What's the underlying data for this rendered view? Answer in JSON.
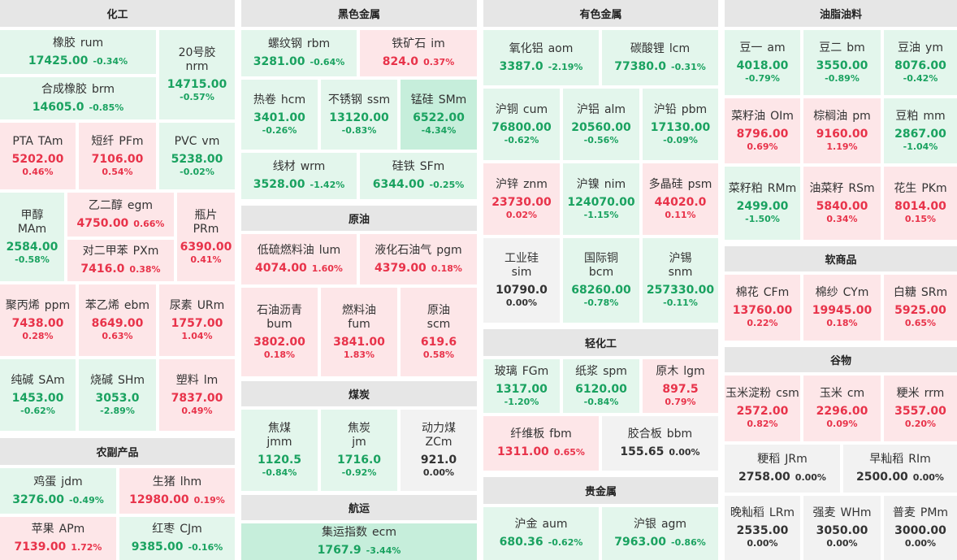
{
  "sections": {
    "huagong": "化工",
    "nongfu": "农副产品",
    "heise": "黑色金属",
    "yuanyou": "原油",
    "meitan": "煤炭",
    "hangyun": "航运",
    "youse": "有色金属",
    "qinghuagong": "轻化工",
    "guijinshu": "贵金属",
    "youzhi": "油脂油料",
    "ruanshangpin": "软商品",
    "guwu": "谷物"
  },
  "tiles": [
    {
      "name": "橡胶",
      "code": "rum",
      "price": "17425.00",
      "pct": "-0.34%",
      "dir": "dn"
    },
    {
      "name": "20号胶",
      "code": "nrm",
      "price": "14715.00",
      "pct": "-0.57%",
      "dir": "dn"
    },
    {
      "name": "合成橡胶",
      "code": "brm",
      "price": "14605.0",
      "pct": "-0.85%",
      "dir": "dn"
    },
    {
      "name": "PTA",
      "code": "TAm",
      "price": "5202.00",
      "pct": "0.46%",
      "dir": "up"
    },
    {
      "name": "短纤",
      "code": "PFm",
      "price": "7106.00",
      "pct": "0.54%",
      "dir": "up"
    },
    {
      "name": "PVC",
      "code": "vm",
      "price": "5238.00",
      "pct": "-0.02%",
      "dir": "dn"
    },
    {
      "name": "甲醇",
      "code": "MAm",
      "price": "2584.00",
      "pct": "-0.58%",
      "dir": "dn"
    },
    {
      "name": "乙二醇",
      "code": "egm",
      "price": "4750.00",
      "pct": "0.66%",
      "dir": "up"
    },
    {
      "name": "瓶片",
      "code": "PRm",
      "price": "6390.00",
      "pct": "0.41%",
      "dir": "up"
    },
    {
      "name": "对二甲苯",
      "code": "PXm",
      "price": "7416.0",
      "pct": "0.38%",
      "dir": "up"
    },
    {
      "name": "聚丙烯",
      "code": "ppm",
      "price": "7438.00",
      "pct": "0.28%",
      "dir": "up"
    },
    {
      "name": "苯乙烯",
      "code": "ebm",
      "price": "8649.00",
      "pct": "0.63%",
      "dir": "up"
    },
    {
      "name": "尿素",
      "code": "URm",
      "price": "1757.00",
      "pct": "1.04%",
      "dir": "up"
    },
    {
      "name": "纯碱",
      "code": "SAm",
      "price": "1453.00",
      "pct": "-0.62%",
      "dir": "dn"
    },
    {
      "name": "烧碱",
      "code": "SHm",
      "price": "3053.0",
      "pct": "-2.89%",
      "dir": "dn"
    },
    {
      "name": "塑料",
      "code": "lm",
      "price": "7837.00",
      "pct": "0.49%",
      "dir": "up"
    },
    {
      "name": "鸡蛋",
      "code": "jdm",
      "price": "3276.00",
      "pct": "-0.49%",
      "dir": "dn"
    },
    {
      "name": "生猪",
      "code": "lhm",
      "price": "12980.00",
      "pct": "0.19%",
      "dir": "up"
    },
    {
      "name": "苹果",
      "code": "APm",
      "price": "7139.00",
      "pct": "1.72%",
      "dir": "up"
    },
    {
      "name": "红枣",
      "code": "CJm",
      "price": "9385.00",
      "pct": "-0.16%",
      "dir": "dn"
    },
    {
      "name": "螺纹钢",
      "code": "rbm",
      "price": "3281.00",
      "pct": "-0.64%",
      "dir": "dn"
    },
    {
      "name": "铁矿石",
      "code": "im",
      "price": "824.0",
      "pct": "0.37%",
      "dir": "up"
    },
    {
      "name": "热卷",
      "code": "hcm",
      "price": "3401.00",
      "pct": "-0.26%",
      "dir": "dn"
    },
    {
      "name": "不锈钢",
      "code": "ssm",
      "price": "13120.00",
      "pct": "-0.83%",
      "dir": "dn"
    },
    {
      "name": "锰硅",
      "code": "SMm",
      "price": "6522.00",
      "pct": "-4.34%",
      "dir": "dn2"
    },
    {
      "name": "线材",
      "code": "wrm",
      "price": "3528.00",
      "pct": "-1.42%",
      "dir": "dn"
    },
    {
      "name": "硅铁",
      "code": "SFm",
      "price": "6344.00",
      "pct": "-0.25%",
      "dir": "dn"
    },
    {
      "name": "低硫燃料油",
      "code": "lum",
      "price": "4074.00",
      "pct": "1.60%",
      "dir": "up"
    },
    {
      "name": "液化石油气",
      "code": "pgm",
      "price": "4379.00",
      "pct": "0.18%",
      "dir": "up"
    },
    {
      "name": "石油沥青",
      "code": "bum",
      "price": "3802.00",
      "pct": "0.18%",
      "dir": "up"
    },
    {
      "name": "燃料油",
      "code": "fum",
      "price": "3841.00",
      "pct": "1.83%",
      "dir": "up"
    },
    {
      "name": "原油",
      "code": "scm",
      "price": "619.6",
      "pct": "0.58%",
      "dir": "up"
    },
    {
      "name": "焦煤",
      "code": "jmm",
      "price": "1120.5",
      "pct": "-0.84%",
      "dir": "dn"
    },
    {
      "name": "焦炭",
      "code": "jm",
      "price": "1716.0",
      "pct": "-0.92%",
      "dir": "dn"
    },
    {
      "name": "动力煤",
      "code": "ZCm",
      "price": "921.0",
      "pct": "0.00%",
      "dir": "ze"
    },
    {
      "name": "集运指数",
      "code": "ecm",
      "price": "1767.9",
      "pct": "-3.44%",
      "dir": "dn2"
    },
    {
      "name": "氧化铝",
      "code": "aom",
      "price": "3387.0",
      "pct": "-2.19%",
      "dir": "dn"
    },
    {
      "name": "碳酸锂",
      "code": "lcm",
      "price": "77380.0",
      "pct": "-0.31%",
      "dir": "dn"
    },
    {
      "name": "沪铜",
      "code": "cum",
      "price": "76800.00",
      "pct": "-0.62%",
      "dir": "dn"
    },
    {
      "name": "沪铝",
      "code": "alm",
      "price": "20560.00",
      "pct": "-0.56%",
      "dir": "dn"
    },
    {
      "name": "沪铅",
      "code": "pbm",
      "price": "17130.00",
      "pct": "-0.09%",
      "dir": "dn"
    },
    {
      "name": "沪锌",
      "code": "znm",
      "price": "23730.00",
      "pct": "0.02%",
      "dir": "up"
    },
    {
      "name": "沪镍",
      "code": "nim",
      "price": "124070.00",
      "pct": "-1.15%",
      "dir": "dn"
    },
    {
      "name": "多晶硅",
      "code": "psm",
      "price": "44020.0",
      "pct": "0.11%",
      "dir": "up"
    },
    {
      "name": "工业硅",
      "code": "sim",
      "price": "10790.0",
      "pct": "0.00%",
      "dir": "ze"
    },
    {
      "name": "国际铜",
      "code": "bcm",
      "price": "68260.00",
      "pct": "-0.78%",
      "dir": "dn"
    },
    {
      "name": "沪锡",
      "code": "snm",
      "price": "257330.00",
      "pct": "-0.11%",
      "dir": "dn"
    },
    {
      "name": "玻璃",
      "code": "FGm",
      "price": "1317.00",
      "pct": "-1.20%",
      "dir": "dn"
    },
    {
      "name": "纸浆",
      "code": "spm",
      "price": "6120.00",
      "pct": "-0.84%",
      "dir": "dn"
    },
    {
      "name": "原木",
      "code": "lgm",
      "price": "897.5",
      "pct": "0.79%",
      "dir": "up"
    },
    {
      "name": "纤维板",
      "code": "fbm",
      "price": "1311.00",
      "pct": "0.65%",
      "dir": "up"
    },
    {
      "name": "胶合板",
      "code": "bbm",
      "price": "155.65",
      "pct": "0.00%",
      "dir": "ze"
    },
    {
      "name": "沪金",
      "code": "aum",
      "price": "680.36",
      "pct": "-0.62%",
      "dir": "dn"
    },
    {
      "name": "沪银",
      "code": "agm",
      "price": "7963.00",
      "pct": "-0.86%",
      "dir": "dn"
    },
    {
      "name": "豆一",
      "code": "am",
      "price": "4018.00",
      "pct": "-0.79%",
      "dir": "dn"
    },
    {
      "name": "豆二",
      "code": "bm",
      "price": "3550.00",
      "pct": "-0.89%",
      "dir": "dn"
    },
    {
      "name": "豆油",
      "code": "ym",
      "price": "8076.00",
      "pct": "-0.42%",
      "dir": "dn"
    },
    {
      "name": "菜籽油",
      "code": "OIm",
      "price": "8796.00",
      "pct": "0.69%",
      "dir": "up"
    },
    {
      "name": "棕榈油",
      "code": "pm",
      "price": "9160.00",
      "pct": "1.19%",
      "dir": "up"
    },
    {
      "name": "豆粕",
      "code": "mm",
      "price": "2867.00",
      "pct": "-1.04%",
      "dir": "dn"
    },
    {
      "name": "菜籽粕",
      "code": "RMm",
      "price": "2499.00",
      "pct": "-1.50%",
      "dir": "dn"
    },
    {
      "name": "油菜籽",
      "code": "RSm",
      "price": "5840.00",
      "pct": "0.34%",
      "dir": "up"
    },
    {
      "name": "花生",
      "code": "PKm",
      "price": "8014.00",
      "pct": "0.15%",
      "dir": "up"
    },
    {
      "name": "棉花",
      "code": "CFm",
      "price": "13760.00",
      "pct": "0.22%",
      "dir": "up"
    },
    {
      "name": "棉纱",
      "code": "CYm",
      "price": "19945.00",
      "pct": "0.18%",
      "dir": "up"
    },
    {
      "name": "白糖",
      "code": "SRm",
      "price": "5925.00",
      "pct": "0.65%",
      "dir": "up"
    },
    {
      "name": "玉米淀粉",
      "code": "csm",
      "price": "2572.00",
      "pct": "0.82%",
      "dir": "up"
    },
    {
      "name": "玉米",
      "code": "cm",
      "price": "2296.00",
      "pct": "0.09%",
      "dir": "up"
    },
    {
      "name": "粳米",
      "code": "rrm",
      "price": "3557.00",
      "pct": "0.20%",
      "dir": "up"
    },
    {
      "name": "粳稻",
      "code": "JRm",
      "price": "2758.00",
      "pct": "0.00%",
      "dir": "ze"
    },
    {
      "name": "早籼稻",
      "code": "RIm",
      "price": "2500.00",
      "pct": "0.00%",
      "dir": "ze"
    },
    {
      "name": "晚籼稻",
      "code": "LRm",
      "price": "2535.00",
      "pct": "0.00%",
      "dir": "ze"
    },
    {
      "name": "强麦",
      "code": "WHm",
      "price": "3050.00",
      "pct": "0.00%",
      "dir": "ze"
    },
    {
      "name": "普麦",
      "code": "PMm",
      "price": "3000.00",
      "pct": "0.00%",
      "dir": "ze"
    }
  ]
}
